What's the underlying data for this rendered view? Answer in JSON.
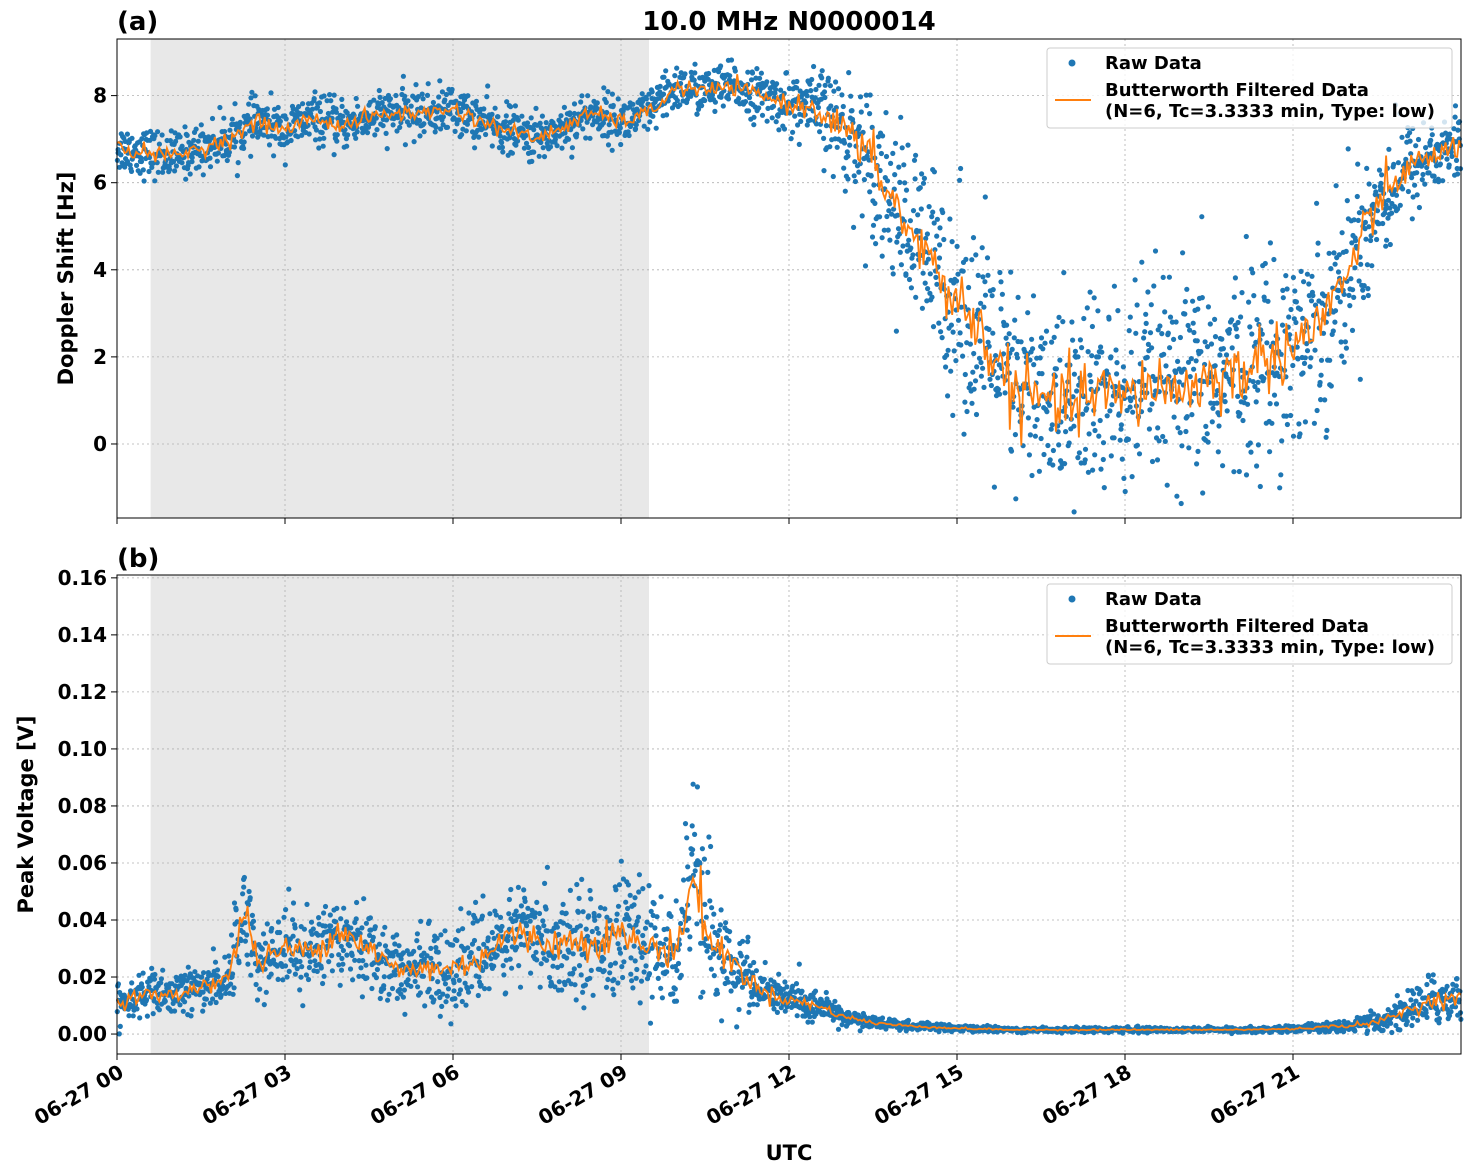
{
  "figure": {
    "title": "10.0 MHz N0000014",
    "xlabel": "UTC",
    "x_tick_labels": [
      "06-27 00",
      "06-27 03",
      "06-27 06",
      "06-27 09",
      "06-27 12",
      "06-27 15",
      "06-27 18",
      "06-27 21"
    ]
  },
  "colors": {
    "raw": "#1f77b4",
    "filtered": "#ff7f0e",
    "shade": "#e8e8e8"
  },
  "legend": {
    "raw_label": "Raw Data",
    "filtered_label_line1": "Butterworth Filtered Data",
    "filtered_label_line2": "(N=6, Tc=3.3333 min, Type: low)"
  },
  "chart_data": [
    {
      "type": "scatter",
      "panel_label": "(a)",
      "title": "10.0 MHz N0000014",
      "xlabel": "",
      "ylabel": "Doppler Shift [Hz]",
      "x_unit": "hours UTC since 06-27 00",
      "xlim": [
        0,
        24
      ],
      "ylim": [
        -1.7,
        9.3
      ],
      "y_ticks": [
        0,
        2,
        4,
        6,
        8
      ],
      "y_tick_labels": [
        "0",
        "2",
        "4",
        "6",
        "8"
      ],
      "grid": true,
      "legend_position": "top-right",
      "shaded_region": [
        0.6,
        9.5
      ],
      "series": [
        {
          "name": "Raw Data",
          "style": "dots",
          "x": [
            0,
            0.5,
            1,
            1.5,
            2,
            2.5,
            3,
            3.5,
            4,
            4.5,
            5,
            5.5,
            6,
            6.5,
            7,
            7.5,
            8,
            8.5,
            9,
            9.5,
            10,
            10.5,
            11,
            11.5,
            12,
            12.5,
            13,
            13.5,
            14,
            14.5,
            15,
            15.5,
            16,
            16.5,
            17,
            17.5,
            18,
            18.5,
            19,
            19.5,
            20,
            20.5,
            21,
            21.5,
            22,
            22.5,
            23,
            23.5,
            24
          ],
          "y": [
            6.8,
            6.7,
            6.6,
            6.8,
            7.0,
            7.4,
            7.2,
            7.5,
            7.3,
            7.5,
            7.6,
            7.6,
            7.7,
            7.4,
            7.2,
            7.0,
            7.3,
            7.6,
            7.4,
            7.6,
            8.2,
            8.1,
            8.2,
            8.0,
            7.8,
            7.7,
            7.2,
            6.5,
            5.2,
            4.2,
            3.3,
            2.4,
            1.2,
            1.0,
            0.9,
            1.2,
            1.0,
            1.4,
            1.2,
            1.5,
            1.6,
            2.0,
            2.3,
            2.8,
            4.0,
            5.5,
            6.3,
            6.6,
            6.9
          ],
          "spread": [
            0.5,
            0.5,
            0.5,
            0.5,
            0.5,
            0.5,
            0.5,
            0.5,
            0.5,
            0.5,
            0.5,
            0.5,
            0.5,
            0.5,
            0.5,
            0.5,
            0.5,
            0.5,
            0.5,
            0.5,
            0.5,
            0.5,
            0.5,
            0.5,
            0.6,
            0.8,
            1.2,
            1.5,
            1.8,
            2.0,
            2.2,
            2.2,
            2.2,
            2.2,
            2.2,
            2.2,
            2.2,
            2.2,
            2.2,
            2.2,
            2.2,
            2.2,
            2.2,
            2.0,
            1.8,
            1.5,
            1.0,
            0.8,
            0.8
          ]
        },
        {
          "name": "Butterworth Filtered Data\n(N=6, Tc=3.3333 min, Type: low)",
          "style": "line",
          "x": [
            0,
            0.5,
            1,
            1.5,
            2,
            2.5,
            3,
            3.5,
            4,
            4.5,
            5,
            5.5,
            6,
            6.5,
            7,
            7.5,
            8,
            8.5,
            9,
            9.5,
            10,
            10.5,
            11,
            11.5,
            12,
            12.5,
            13,
            13.5,
            14,
            14.5,
            15,
            15.5,
            16,
            16.5,
            17,
            17.5,
            18,
            18.5,
            19,
            19.5,
            20,
            20.5,
            21,
            21.5,
            22,
            22.5,
            23,
            23.5,
            24
          ],
          "y": [
            6.8,
            6.7,
            6.6,
            6.8,
            7.0,
            7.4,
            7.2,
            7.5,
            7.3,
            7.5,
            7.6,
            7.6,
            7.7,
            7.4,
            7.2,
            7.0,
            7.3,
            7.6,
            7.4,
            7.6,
            8.2,
            8.1,
            8.2,
            8.0,
            7.8,
            7.7,
            7.2,
            6.5,
            5.2,
            4.2,
            3.3,
            2.4,
            1.2,
            1.0,
            0.9,
            1.2,
            1.0,
            1.4,
            1.2,
            1.5,
            1.6,
            2.0,
            2.3,
            2.8,
            4.0,
            5.5,
            6.3,
            6.6,
            6.9
          ]
        }
      ]
    },
    {
      "type": "scatter",
      "panel_label": "(b)",
      "xlabel": "UTC",
      "ylabel": "Peak Voltage [V]",
      "x_unit": "hours UTC since 06-27 00",
      "xlim": [
        0,
        24
      ],
      "ylim": [
        -0.007,
        0.161
      ],
      "y_ticks": [
        0.0,
        0.02,
        0.04,
        0.06,
        0.08,
        0.1,
        0.12,
        0.14,
        0.16
      ],
      "y_tick_labels": [
        "0.00",
        "0.02",
        "0.04",
        "0.06",
        "0.08",
        "0.10",
        "0.12",
        "0.14",
        "0.16"
      ],
      "grid": true,
      "legend_position": "top-right",
      "shaded_region": [
        0.6,
        9.5
      ],
      "series": [
        {
          "name": "Raw Data",
          "style": "dots",
          "x": [
            0,
            0.5,
            1,
            1.5,
            2,
            2.3,
            2.5,
            3,
            3.5,
            4,
            4.5,
            5,
            5.5,
            6,
            6.5,
            7,
            7.5,
            8,
            8.5,
            9,
            9.5,
            10,
            10.3,
            10.6,
            11,
            11.5,
            12,
            12.5,
            13,
            13.5,
            14,
            15,
            16,
            17,
            18,
            19,
            20,
            21,
            22,
            22.5,
            23,
            23.5,
            24
          ],
          "y": [
            0.011,
            0.014,
            0.013,
            0.017,
            0.02,
            0.045,
            0.025,
            0.03,
            0.029,
            0.037,
            0.03,
            0.022,
            0.023,
            0.023,
            0.027,
            0.035,
            0.033,
            0.032,
            0.033,
            0.035,
            0.03,
            0.03,
            0.055,
            0.032,
            0.025,
            0.015,
            0.012,
            0.01,
            0.006,
            0.004,
            0.003,
            0.002,
            0.0015,
            0.0015,
            0.0015,
            0.0015,
            0.0015,
            0.0018,
            0.003,
            0.004,
            0.008,
            0.012,
            0.013
          ],
          "spread": [
            0.006,
            0.007,
            0.007,
            0.008,
            0.01,
            0.018,
            0.012,
            0.012,
            0.012,
            0.015,
            0.014,
            0.012,
            0.013,
            0.013,
            0.014,
            0.016,
            0.016,
            0.017,
            0.017,
            0.018,
            0.017,
            0.018,
            0.03,
            0.022,
            0.014,
            0.008,
            0.006,
            0.005,
            0.003,
            0.002,
            0.0015,
            0.001,
            0.0008,
            0.0008,
            0.0008,
            0.0008,
            0.0008,
            0.001,
            0.002,
            0.003,
            0.006,
            0.008,
            0.008
          ]
        },
        {
          "name": "Butterworth Filtered Data\n(N=6, Tc=3.3333 min, Type: low)",
          "style": "line",
          "x": [
            0,
            0.5,
            1,
            1.5,
            2,
            2.3,
            2.5,
            3,
            3.5,
            4,
            4.5,
            5,
            5.5,
            6,
            6.5,
            7,
            7.5,
            8,
            8.5,
            9,
            9.5,
            10,
            10.3,
            10.6,
            11,
            11.5,
            12,
            12.5,
            13,
            13.5,
            14,
            15,
            16,
            17,
            18,
            19,
            20,
            21,
            22,
            22.5,
            23,
            23.5,
            24
          ],
          "y": [
            0.011,
            0.014,
            0.013,
            0.017,
            0.02,
            0.045,
            0.025,
            0.03,
            0.029,
            0.037,
            0.03,
            0.022,
            0.023,
            0.023,
            0.027,
            0.035,
            0.033,
            0.032,
            0.033,
            0.035,
            0.03,
            0.03,
            0.055,
            0.032,
            0.025,
            0.015,
            0.012,
            0.01,
            0.006,
            0.004,
            0.003,
            0.002,
            0.0015,
            0.0015,
            0.0015,
            0.0015,
            0.0015,
            0.0018,
            0.003,
            0.004,
            0.008,
            0.012,
            0.013
          ]
        }
      ]
    }
  ]
}
